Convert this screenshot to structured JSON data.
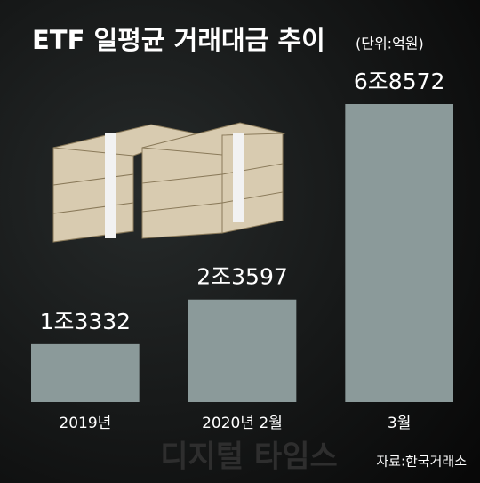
{
  "chart_data": {
    "type": "bar",
    "title": "ETF 일평균 거래대금 추이",
    "subtitle": "(단위:억원)",
    "categories": [
      "2019년",
      "2020년 2월",
      "3월"
    ],
    "values": [
      13332,
      23597,
      68572
    ],
    "value_labels": [
      "1조3332",
      "2조3597",
      "6조8572"
    ],
    "color": "#8b9a9a",
    "source": "자료:한국거래소",
    "watermark": "디지털 타임스"
  }
}
